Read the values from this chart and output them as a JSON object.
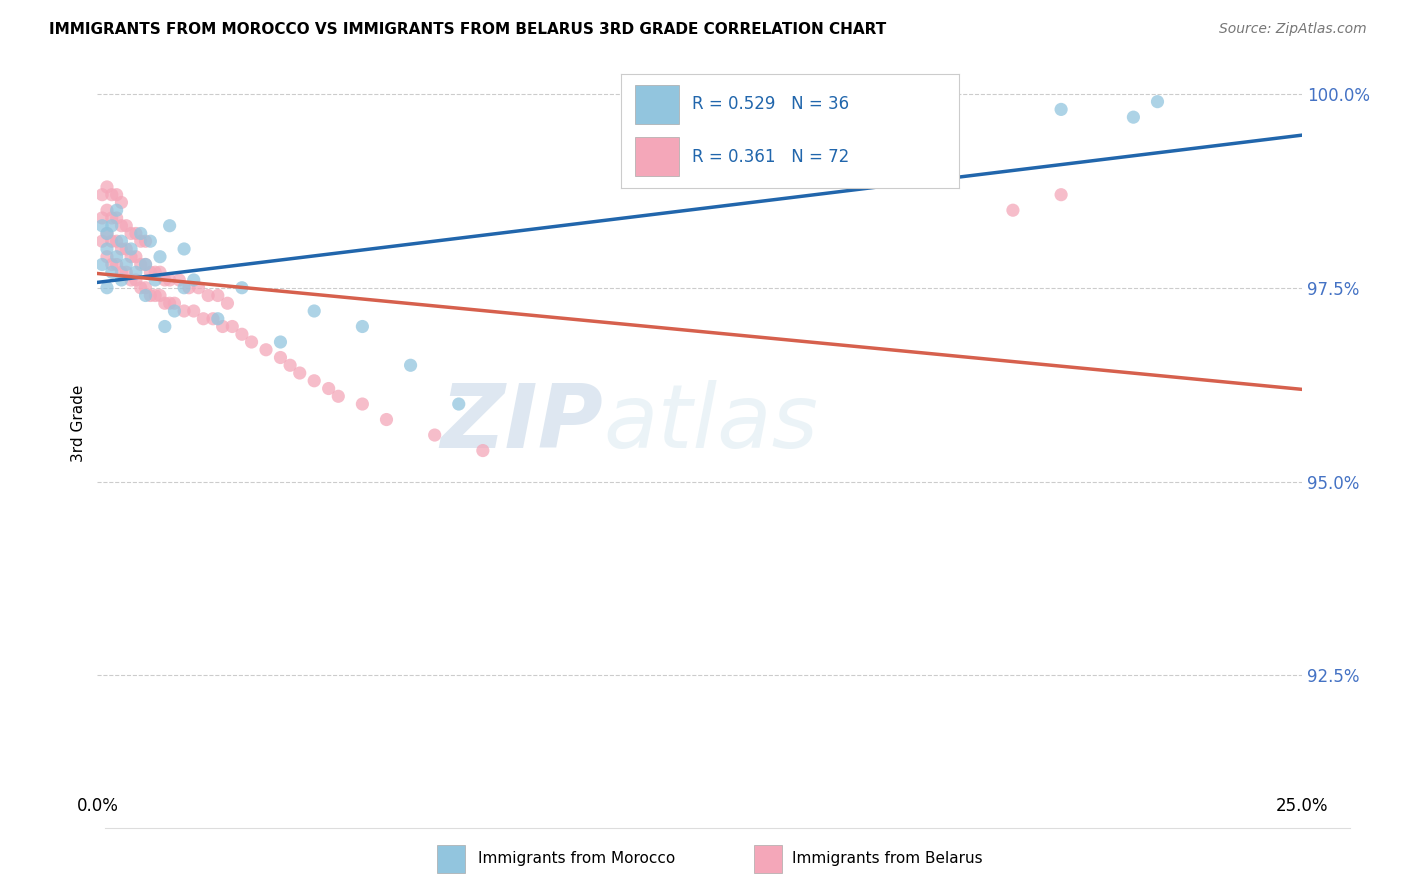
{
  "title": "IMMIGRANTS FROM MOROCCO VS IMMIGRANTS FROM BELARUS 3RD GRADE CORRELATION CHART",
  "source": "Source: ZipAtlas.com",
  "ylabel": "3rd Grade",
  "xlim": [
    0.0,
    0.25
  ],
  "ylim": [
    0.91,
    1.005
  ],
  "yticks": [
    0.925,
    0.95,
    0.975,
    1.0
  ],
  "ytick_labels": [
    "92.5%",
    "95.0%",
    "97.5%",
    "100.0%"
  ],
  "xticks": [
    0.0,
    0.05,
    0.1,
    0.15,
    0.2,
    0.25
  ],
  "xtick_labels": [
    "0.0%",
    "",
    "",
    "",
    "",
    "25.0%"
  ],
  "legend_labels": [
    "Immigrants from Morocco",
    "Immigrants from Belarus"
  ],
  "R_morocco": 0.529,
  "N_morocco": 36,
  "R_belarus": 0.361,
  "N_belarus": 72,
  "color_morocco": "#92c5de",
  "color_belarus": "#f4a7b9",
  "trendline_color_morocco": "#2166ac",
  "trendline_color_belarus": "#d6604d",
  "background_color": "#ffffff",
  "watermark_zip": "ZIP",
  "watermark_atlas": "atlas",
  "morocco_x": [
    0.001,
    0.001,
    0.002,
    0.002,
    0.002,
    0.003,
    0.003,
    0.004,
    0.004,
    0.005,
    0.005,
    0.006,
    0.007,
    0.008,
    0.009,
    0.01,
    0.011,
    0.013,
    0.015,
    0.018,
    0.02,
    0.025,
    0.03,
    0.038,
    0.045,
    0.055,
    0.065,
    0.075,
    0.01,
    0.012,
    0.014,
    0.016,
    0.018,
    0.2,
    0.215,
    0.22
  ],
  "morocco_y": [
    0.978,
    0.983,
    0.98,
    0.975,
    0.982,
    0.977,
    0.983,
    0.979,
    0.985,
    0.976,
    0.981,
    0.978,
    0.98,
    0.977,
    0.982,
    0.978,
    0.981,
    0.979,
    0.983,
    0.98,
    0.976,
    0.971,
    0.975,
    0.968,
    0.972,
    0.97,
    0.965,
    0.96,
    0.974,
    0.976,
    0.97,
    0.972,
    0.975,
    0.998,
    0.997,
    0.999
  ],
  "belarus_x": [
    0.001,
    0.001,
    0.001,
    0.002,
    0.002,
    0.002,
    0.002,
    0.003,
    0.003,
    0.003,
    0.003,
    0.004,
    0.004,
    0.004,
    0.004,
    0.005,
    0.005,
    0.005,
    0.005,
    0.006,
    0.006,
    0.006,
    0.007,
    0.007,
    0.007,
    0.008,
    0.008,
    0.008,
    0.009,
    0.009,
    0.009,
    0.01,
    0.01,
    0.01,
    0.011,
    0.011,
    0.012,
    0.012,
    0.013,
    0.013,
    0.014,
    0.014,
    0.015,
    0.015,
    0.016,
    0.017,
    0.018,
    0.019,
    0.02,
    0.021,
    0.022,
    0.023,
    0.024,
    0.025,
    0.026,
    0.027,
    0.028,
    0.03,
    0.032,
    0.035,
    0.038,
    0.04,
    0.042,
    0.045,
    0.048,
    0.05,
    0.055,
    0.06,
    0.07,
    0.08,
    0.19,
    0.2
  ],
  "belarus_y": [
    0.981,
    0.984,
    0.987,
    0.979,
    0.982,
    0.985,
    0.988,
    0.978,
    0.981,
    0.984,
    0.987,
    0.978,
    0.981,
    0.984,
    0.987,
    0.977,
    0.98,
    0.983,
    0.986,
    0.977,
    0.98,
    0.983,
    0.976,
    0.979,
    0.982,
    0.976,
    0.979,
    0.982,
    0.975,
    0.978,
    0.981,
    0.975,
    0.978,
    0.981,
    0.974,
    0.977,
    0.974,
    0.977,
    0.974,
    0.977,
    0.973,
    0.976,
    0.973,
    0.976,
    0.973,
    0.976,
    0.972,
    0.975,
    0.972,
    0.975,
    0.971,
    0.974,
    0.971,
    0.974,
    0.97,
    0.973,
    0.97,
    0.969,
    0.968,
    0.967,
    0.966,
    0.965,
    0.964,
    0.963,
    0.962,
    0.961,
    0.96,
    0.958,
    0.956,
    0.954,
    0.985,
    0.987
  ]
}
